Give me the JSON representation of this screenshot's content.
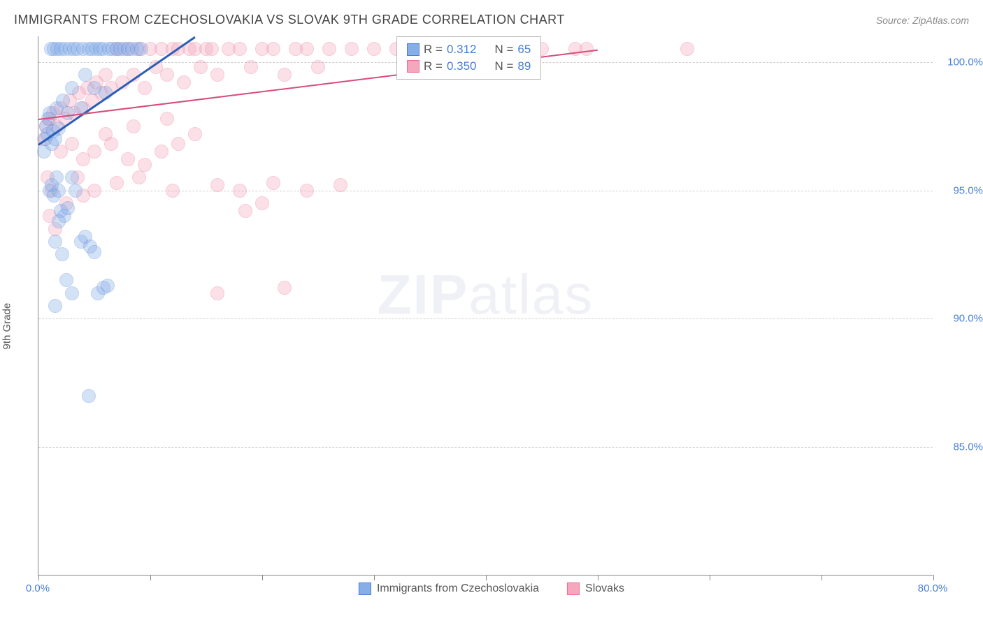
{
  "title": "IMMIGRANTS FROM CZECHOSLOVAKIA VS SLOVAK 9TH GRADE CORRELATION CHART",
  "source_label": "Source: ZipAtlas.com",
  "watermark_main": "ZIP",
  "watermark_sub": "atlas",
  "ylabel": "9th Grade",
  "chart": {
    "type": "scatter",
    "xlim": [
      0,
      80
    ],
    "ylim": [
      80,
      101
    ],
    "xtick_step": 10,
    "yticks": [
      85.0,
      90.0,
      95.0,
      100.0
    ],
    "ytick_labels": [
      "85.0%",
      "90.0%",
      "95.0%",
      "100.0%"
    ],
    "x_min_label": "0.0%",
    "x_max_label": "80.0%",
    "background_color": "#ffffff",
    "grid_color": "#cfcfcf",
    "marker_radius": 10,
    "marker_opacity": 0.35,
    "series_a": {
      "label": "Immigrants from Czechoslovakia",
      "fill": "#86aee8",
      "stroke": "#4a7fd6",
      "R": "0.312",
      "N": "65",
      "trend": {
        "x0": 0,
        "y0": 96.8,
        "x1": 14,
        "y1": 101,
        "color": "#2a5fb6",
        "width": 3
      },
      "points": [
        [
          0.5,
          96.5
        ],
        [
          0.6,
          97.0
        ],
        [
          0.7,
          97.5
        ],
        [
          0.8,
          97.2
        ],
        [
          0.9,
          97.8
        ],
        [
          1.0,
          98.0
        ],
        [
          1.1,
          100.5
        ],
        [
          1.2,
          96.8
        ],
        [
          1.3,
          97.3
        ],
        [
          1.4,
          100.5
        ],
        [
          1.5,
          97.0
        ],
        [
          1.6,
          98.2
        ],
        [
          1.7,
          100.5
        ],
        [
          1.8,
          97.4
        ],
        [
          2.0,
          100.5
        ],
        [
          2.2,
          98.5
        ],
        [
          2.4,
          100.5
        ],
        [
          2.6,
          98.0
        ],
        [
          2.8,
          100.5
        ],
        [
          3.0,
          99.0
        ],
        [
          3.2,
          100.5
        ],
        [
          3.5,
          100.5
        ],
        [
          3.8,
          98.2
        ],
        [
          4.0,
          100.5
        ],
        [
          4.2,
          99.5
        ],
        [
          4.5,
          100.5
        ],
        [
          4.8,
          100.5
        ],
        [
          5.0,
          99.0
        ],
        [
          5.2,
          100.5
        ],
        [
          5.5,
          100.5
        ],
        [
          5.8,
          100.5
        ],
        [
          6.0,
          98.8
        ],
        [
          6.3,
          100.5
        ],
        [
          6.6,
          100.5
        ],
        [
          7.0,
          100.5
        ],
        [
          7.3,
          100.5
        ],
        [
          7.6,
          100.5
        ],
        [
          8.0,
          100.5
        ],
        [
          8.4,
          100.5
        ],
        [
          8.8,
          100.5
        ],
        [
          9.2,
          100.5
        ],
        [
          1.0,
          95.0
        ],
        [
          1.2,
          95.2
        ],
        [
          1.4,
          94.8
        ],
        [
          1.6,
          95.5
        ],
        [
          1.8,
          95.0
        ],
        [
          2.0,
          94.2
        ],
        [
          2.3,
          94.0
        ],
        [
          2.6,
          94.3
        ],
        [
          3.0,
          95.5
        ],
        [
          3.3,
          95.0
        ],
        [
          1.5,
          93.0
        ],
        [
          1.8,
          93.8
        ],
        [
          2.1,
          92.5
        ],
        [
          3.0,
          91.0
        ],
        [
          3.8,
          93.0
        ],
        [
          4.2,
          93.2
        ],
        [
          4.6,
          92.8
        ],
        [
          5.0,
          92.6
        ],
        [
          2.5,
          91.5
        ],
        [
          1.5,
          90.5
        ],
        [
          4.5,
          87.0
        ],
        [
          5.3,
          91.0
        ],
        [
          5.8,
          91.2
        ],
        [
          6.2,
          91.3
        ]
      ]
    },
    "series_b": {
      "label": "Slovaks",
      "fill": "#f4a7bd",
      "stroke": "#e86d93",
      "R": "0.350",
      "N": "89",
      "trend": {
        "x0": 0,
        "y0": 97.8,
        "x1": 50,
        "y1": 100.5,
        "color": "#d64d79",
        "width": 2
      },
      "points": [
        [
          0.5,
          97.0
        ],
        [
          0.7,
          97.5
        ],
        [
          1.0,
          97.8
        ],
        [
          1.3,
          98.0
        ],
        [
          1.6,
          97.5
        ],
        [
          2.0,
          98.2
        ],
        [
          2.4,
          97.8
        ],
        [
          2.8,
          98.5
        ],
        [
          3.2,
          98.0
        ],
        [
          3.6,
          98.8
        ],
        [
          4.0,
          98.2
        ],
        [
          4.4,
          99.0
        ],
        [
          4.8,
          98.5
        ],
        [
          5.2,
          99.2
        ],
        [
          5.6,
          98.8
        ],
        [
          6.0,
          99.5
        ],
        [
          6.5,
          99.0
        ],
        [
          7.0,
          100.5
        ],
        [
          7.5,
          99.2
        ],
        [
          8.0,
          100.5
        ],
        [
          8.5,
          99.5
        ],
        [
          9.0,
          100.5
        ],
        [
          9.5,
          99.0
        ],
        [
          10.0,
          100.5
        ],
        [
          10.5,
          99.8
        ],
        [
          11.0,
          100.5
        ],
        [
          11.5,
          99.5
        ],
        [
          12.0,
          100.5
        ],
        [
          12.5,
          100.5
        ],
        [
          13.0,
          99.2
        ],
        [
          13.5,
          100.5
        ],
        [
          14.0,
          100.5
        ],
        [
          14.5,
          99.8
        ],
        [
          15.0,
          100.5
        ],
        [
          15.5,
          100.5
        ],
        [
          16.0,
          99.5
        ],
        [
          17.0,
          100.5
        ],
        [
          18.0,
          100.5
        ],
        [
          19.0,
          99.8
        ],
        [
          20.0,
          100.5
        ],
        [
          21.0,
          100.5
        ],
        [
          22.0,
          99.5
        ],
        [
          23.0,
          100.5
        ],
        [
          24.0,
          100.5
        ],
        [
          25.0,
          99.8
        ],
        [
          26.0,
          100.5
        ],
        [
          28.0,
          100.5
        ],
        [
          30.0,
          100.5
        ],
        [
          32.0,
          100.5
        ],
        [
          35.0,
          100.5
        ],
        [
          38.0,
          100.5
        ],
        [
          42.0,
          100.5
        ],
        [
          45.0,
          100.5
        ],
        [
          48.0,
          100.5
        ],
        [
          49.0,
          100.5
        ],
        [
          58.0,
          100.5
        ],
        [
          2.0,
          96.5
        ],
        [
          3.0,
          96.8
        ],
        [
          4.0,
          96.2
        ],
        [
          5.0,
          96.5
        ],
        [
          6.5,
          96.8
        ],
        [
          8.0,
          96.2
        ],
        [
          9.5,
          96.0
        ],
        [
          11.0,
          96.5
        ],
        [
          12.5,
          96.8
        ],
        [
          6.0,
          97.2
        ],
        [
          8.5,
          97.5
        ],
        [
          11.5,
          97.8
        ],
        [
          14.0,
          97.2
        ],
        [
          3.5,
          95.5
        ],
        [
          5.0,
          95.0
        ],
        [
          7.0,
          95.3
        ],
        [
          9.0,
          95.5
        ],
        [
          12.0,
          95.0
        ],
        [
          16.0,
          95.2
        ],
        [
          18.0,
          95.0
        ],
        [
          21.0,
          95.3
        ],
        [
          24.0,
          95.0
        ],
        [
          27.0,
          95.2
        ],
        [
          0.8,
          95.5
        ],
        [
          1.2,
          95.0
        ],
        [
          2.5,
          94.5
        ],
        [
          4.0,
          94.8
        ],
        [
          16.0,
          91.0
        ],
        [
          18.5,
          94.2
        ],
        [
          20.0,
          94.5
        ],
        [
          22.0,
          91.2
        ],
        [
          1.0,
          94.0
        ],
        [
          1.5,
          93.5
        ]
      ]
    }
  },
  "legend_box": {
    "rows": [
      {
        "swatch_fill": "#86aee8",
        "swatch_stroke": "#4a7fd6",
        "r_label": "R =",
        "r_val": "0.312",
        "n_label": "N =",
        "n_val": "65"
      },
      {
        "swatch_fill": "#f4a7bd",
        "swatch_stroke": "#e86d93",
        "r_label": "R =",
        "r_val": "0.350",
        "n_label": "N =",
        "n_val": "89"
      }
    ]
  }
}
